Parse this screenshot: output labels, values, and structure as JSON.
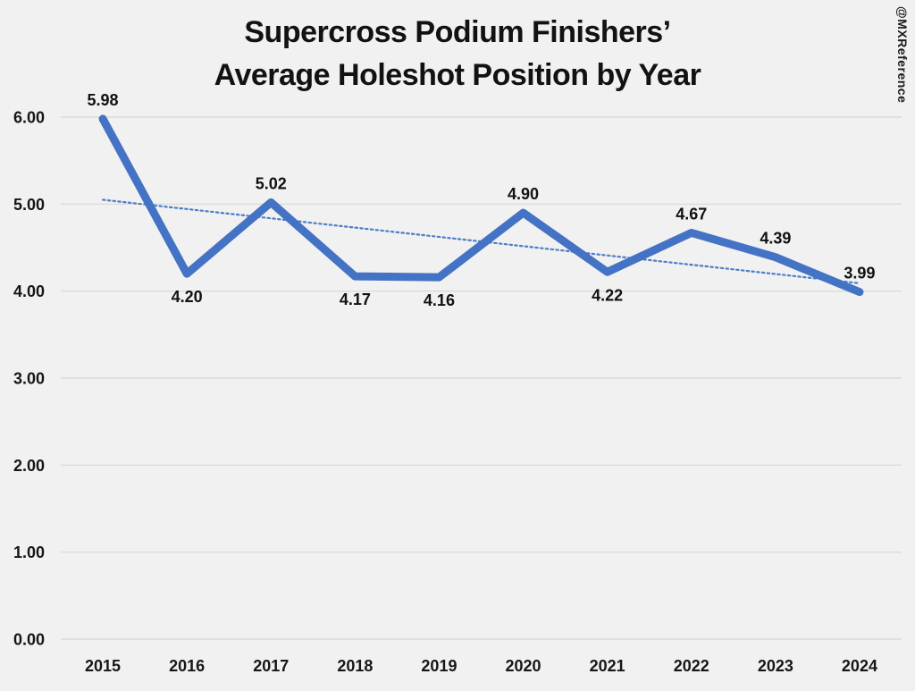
{
  "title": {
    "line1": "Supercross Podium Finishers’",
    "line2": "Average Holeshot Position by Year"
  },
  "watermark": "@MXReference",
  "chart_data": {
    "type": "line",
    "title": "Supercross Podium Finishers’ Average Holeshot Position by Year",
    "categories": [
      "2015",
      "2016",
      "2017",
      "2018",
      "2019",
      "2020",
      "2021",
      "2022",
      "2023",
      "2024"
    ],
    "values": [
      5.98,
      4.2,
      5.02,
      4.17,
      4.16,
      4.9,
      4.22,
      4.67,
      4.39,
      3.99
    ],
    "value_labels": [
      "5.98",
      "4.20",
      "5.02",
      "4.17",
      "4.16",
      "4.90",
      "4.22",
      "4.67",
      "4.39",
      "3.99"
    ],
    "label_positions": [
      "above",
      "below",
      "above",
      "below",
      "below",
      "above",
      "below",
      "above",
      "above",
      "above"
    ],
    "ylim": [
      0,
      6
    ],
    "ytick_values": [
      0,
      1,
      2,
      3,
      4,
      5,
      6
    ],
    "ytick_labels": [
      "0.00",
      "1.00",
      "2.00",
      "3.00",
      "4.00",
      "5.00",
      "6.00"
    ],
    "grid": "horizontal",
    "legend": "none",
    "trendline": {
      "style": "dotted",
      "start_value": 5.05,
      "end_value": 4.09
    },
    "colors": {
      "series": "#4472C4",
      "trendline": "#4E7DC8",
      "gridline": "#DBDBDB",
      "background": "#F1F1F1",
      "label": "#111111"
    }
  }
}
